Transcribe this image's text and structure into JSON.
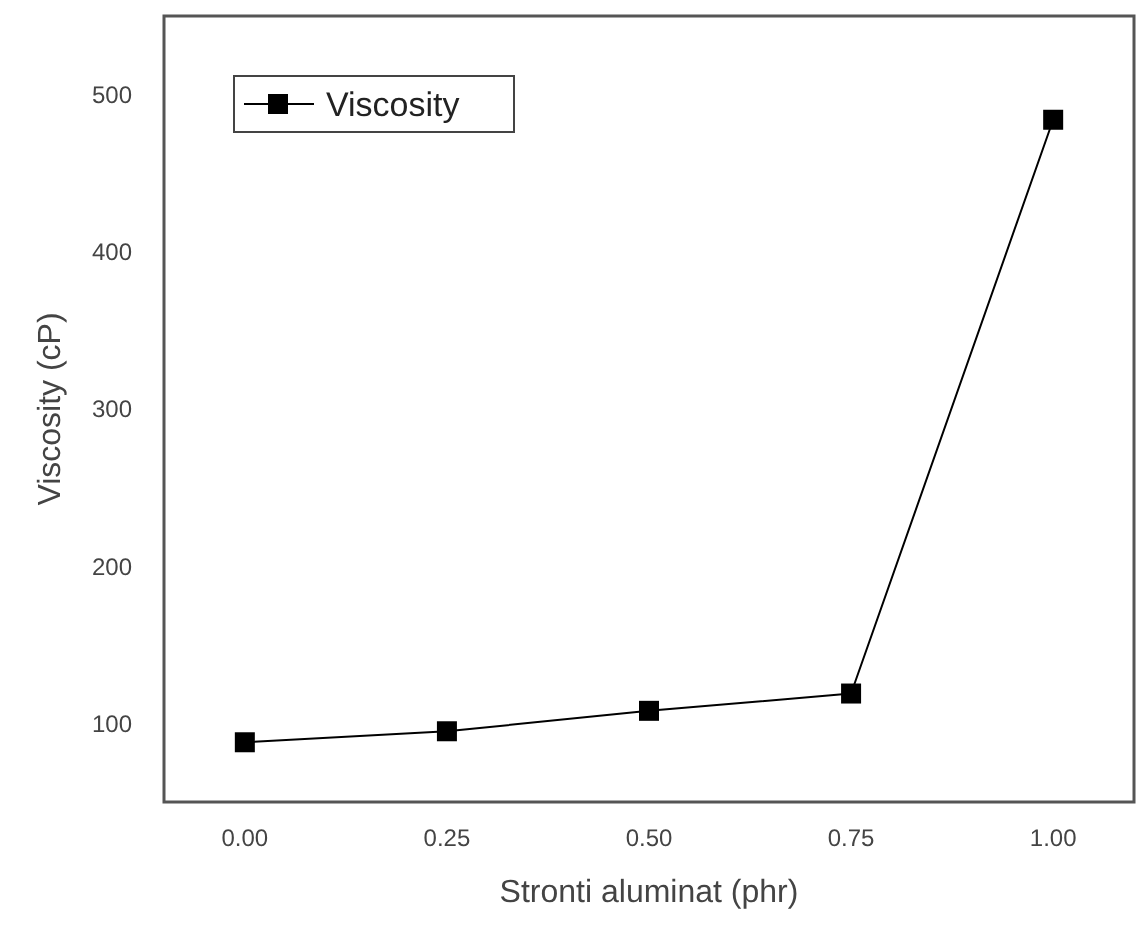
{
  "chart_data": {
    "type": "line",
    "xlabel": "Stronti aluminat (phr)",
    "ylabel": "Viscosity (cP)",
    "x": [
      0,
      0.25,
      0.5,
      0.75,
      1
    ],
    "series": [
      {
        "name": "Viscosity",
        "color": "#000000",
        "values": [
          88,
          95,
          108,
          119,
          484
        ]
      }
    ],
    "xlim": [
      -0.1,
      1.1
    ],
    "xticks": [
      {
        "value": 0,
        "label": "0.00"
      },
      {
        "value": 0.25,
        "label": "0.25"
      },
      {
        "value": 0.5,
        "label": "0.50"
      },
      {
        "value": 0.75,
        "label": "0.75"
      },
      {
        "value": 1,
        "label": "1.00"
      }
    ],
    "ylim": [
      50,
      550
    ],
    "yticks": [
      100,
      200,
      300,
      400,
      500
    ],
    "marker": "square",
    "line_style": "solid",
    "legend": "top left",
    "grid": false
  }
}
